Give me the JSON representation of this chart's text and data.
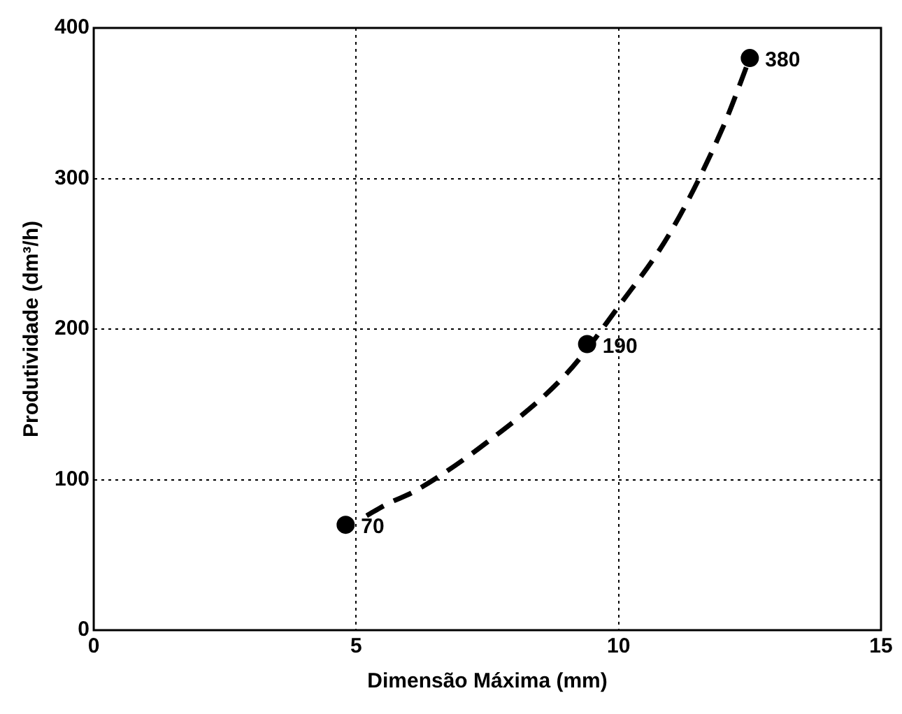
{
  "chart_data": {
    "type": "scatter",
    "xlabel": "Dimensão Máxima (mm)",
    "ylabel": "Produtividade (dm³/h)",
    "xlim": [
      0,
      15
    ],
    "xticks": [
      0,
      5,
      10,
      15
    ],
    "ylim": [
      0,
      400
    ],
    "yticks": [
      0,
      100,
      200,
      300,
      400
    ],
    "grid": true,
    "legend": false,
    "series": [
      {
        "type": "scatter",
        "color": "#000000",
        "marker": "circle",
        "x": [
          4.8,
          9.4,
          12.5
        ],
        "values": [
          70,
          190,
          380
        ],
        "value_labels": [
          "70",
          "190",
          "380"
        ]
      },
      {
        "type": "line",
        "color": "#000000",
        "line_style": "dashed",
        "marker": "none",
        "x": [
          5.2,
          5.6,
          6.1,
          7.5,
          9.0,
          10.0,
          11.0,
          12.0,
          12.5
        ],
        "values": [
          76,
          84,
          92,
          125,
          170,
          215,
          265,
          335,
          380
        ]
      }
    ]
  }
}
